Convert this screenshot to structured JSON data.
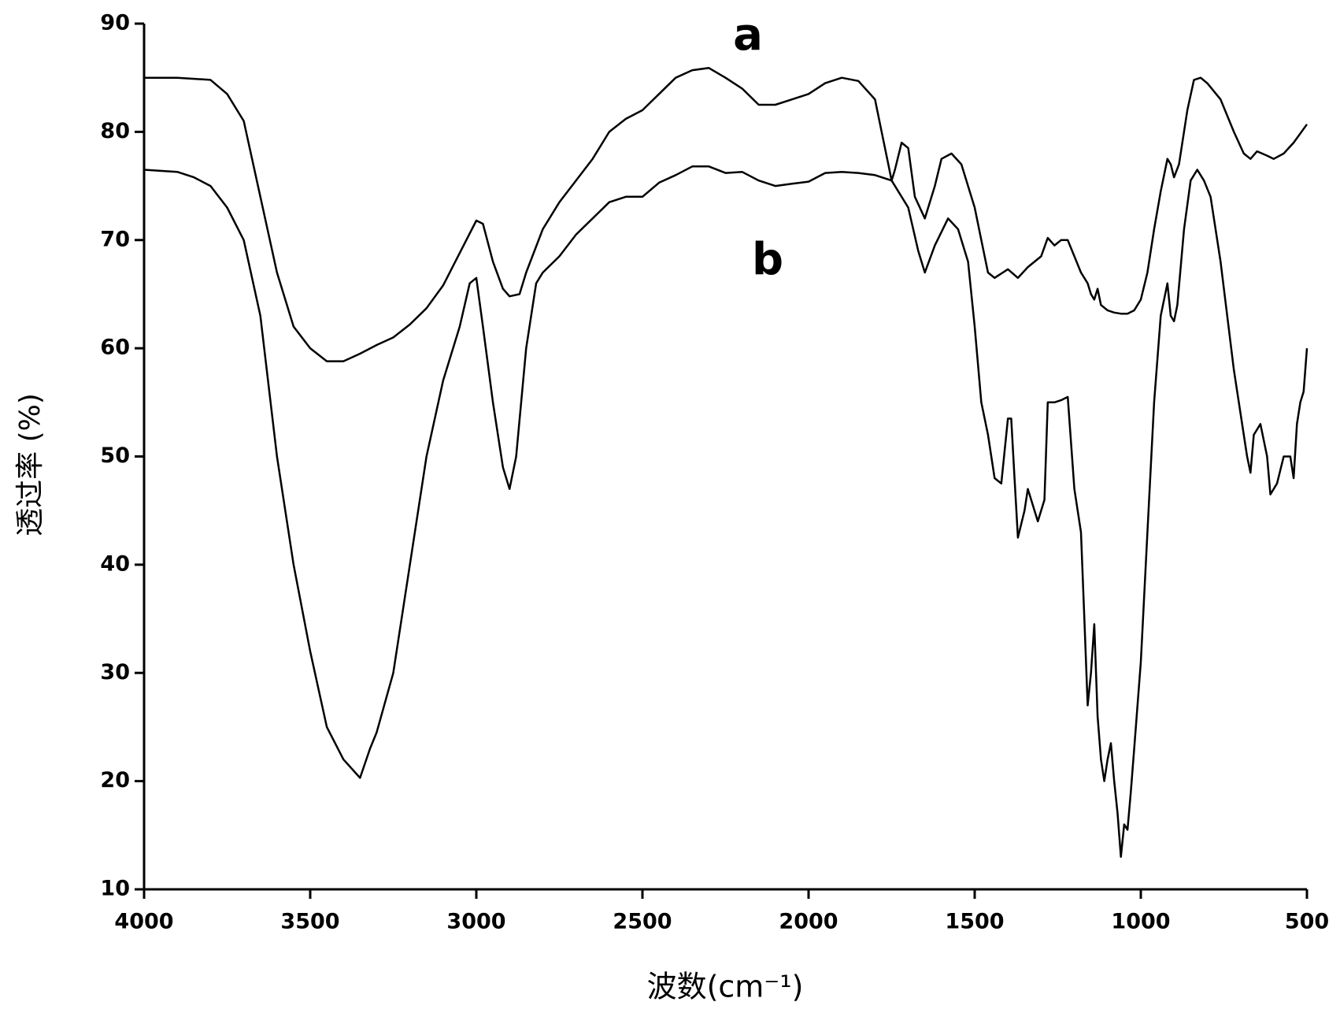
{
  "chart_data": {
    "type": "line",
    "x_label": "波数(cm⁻¹)",
    "y_label": "透过率 (%)",
    "xlim": [
      4000,
      500
    ],
    "ylim": [
      10,
      90
    ],
    "xticks": [
      4000,
      3500,
      3000,
      2500,
      2000,
      1500,
      1000,
      500
    ],
    "yticks": [
      10,
      20,
      30,
      40,
      50,
      60,
      70,
      80,
      90
    ],
    "grid": false,
    "series": [
      {
        "name": "a",
        "color": "#000000",
        "x": [
          4000,
          3900,
          3800,
          3750,
          3700,
          3650,
          3600,
          3550,
          3500,
          3450,
          3400,
          3350,
          3300,
          3250,
          3200,
          3150,
          3100,
          3050,
          3000,
          2980,
          2950,
          2920,
          2900,
          2870,
          2850,
          2800,
          2750,
          2700,
          2650,
          2600,
          2550,
          2500,
          2450,
          2400,
          2350,
          2300,
          2250,
          2200,
          2150,
          2100,
          2050,
          2000,
          1950,
          1900,
          1850,
          1800,
          1780,
          1760,
          1750,
          1740,
          1720,
          1700,
          1680,
          1650,
          1620,
          1600,
          1570,
          1540,
          1500,
          1480,
          1460,
          1440,
          1400,
          1370,
          1340,
          1300,
          1280,
          1260,
          1240,
          1220,
          1200,
          1180,
          1160,
          1150,
          1140,
          1130,
          1120,
          1100,
          1080,
          1060,
          1040,
          1020,
          1000,
          980,
          960,
          940,
          920,
          910,
          900,
          885,
          860,
          840,
          820,
          800,
          760,
          720,
          690,
          670,
          650,
          620,
          600,
          570,
          540,
          500
        ],
        "values": [
          85,
          85,
          84.8,
          83.5,
          81,
          74,
          67,
          62,
          60,
          58.8,
          58.8,
          59.5,
          60.3,
          61,
          62.2,
          63.7,
          65.8,
          68.8,
          71.8,
          71.5,
          68,
          65.5,
          64.8,
          65,
          67,
          71,
          73.5,
          75.5,
          77.5,
          80,
          81.2,
          82,
          83.5,
          85,
          85.7,
          85.9,
          85,
          84,
          82.5,
          82.5,
          83,
          83.5,
          84.5,
          85,
          84.7,
          83,
          80,
          77,
          75.5,
          76.5,
          79,
          78.5,
          74,
          72,
          75,
          77.5,
          78,
          77,
          73,
          70,
          67,
          66.5,
          67.3,
          66.5,
          67.5,
          68.5,
          70.2,
          69.5,
          70,
          70,
          68.5,
          67,
          66,
          65,
          64.5,
          65.5,
          64,
          63.5,
          63.3,
          63.2,
          63.2,
          63.5,
          64.5,
          67,
          71,
          74.5,
          77.5,
          77,
          75.8,
          77,
          82,
          84.8,
          85,
          84.5,
          83,
          80,
          78,
          77.5,
          78.2,
          77.8,
          77.5,
          78,
          79,
          80.7
        ]
      },
      {
        "name": "b",
        "color": "#000000",
        "x": [
          4000,
          3900,
          3850,
          3800,
          3750,
          3700,
          3650,
          3600,
          3550,
          3500,
          3450,
          3400,
          3350,
          3320,
          3300,
          3250,
          3200,
          3150,
          3100,
          3050,
          3020,
          3000,
          2980,
          2950,
          2920,
          2900,
          2880,
          2850,
          2820,
          2800,
          2750,
          2700,
          2650,
          2600,
          2550,
          2500,
          2450,
          2400,
          2350,
          2300,
          2250,
          2200,
          2150,
          2100,
          2050,
          2000,
          1950,
          1900,
          1850,
          1800,
          1750,
          1700,
          1670,
          1650,
          1620,
          1580,
          1550,
          1520,
          1500,
          1480,
          1460,
          1440,
          1420,
          1400,
          1390,
          1380,
          1370,
          1350,
          1340,
          1320,
          1310,
          1290,
          1280,
          1260,
          1240,
          1220,
          1200,
          1180,
          1170,
          1160,
          1150,
          1140,
          1130,
          1120,
          1110,
          1100,
          1090,
          1080,
          1070,
          1060,
          1050,
          1040,
          1030,
          1020,
          1000,
          980,
          960,
          940,
          920,
          910,
          900,
          890,
          870,
          850,
          830,
          810,
          790,
          760,
          720,
          700,
          680,
          670,
          660,
          640,
          620,
          610,
          590,
          570,
          550,
          540,
          530,
          520,
          510,
          500
        ],
        "values": [
          76.5,
          76.3,
          75.8,
          75,
          73,
          70,
          63,
          50,
          40,
          32,
          25,
          22,
          20.3,
          23,
          24.5,
          30,
          40,
          50,
          57,
          62,
          66,
          66.5,
          62,
          55,
          49,
          47,
          50,
          60,
          66,
          67,
          68.5,
          70.5,
          72,
          73.5,
          74,
          74,
          75.3,
          76,
          76.8,
          76.8,
          76.2,
          76.3,
          75.5,
          75,
          75.2,
          75.4,
          76.2,
          76.3,
          76.2,
          76,
          75.5,
          73,
          69,
          67,
          69.5,
          72,
          71,
          68,
          62,
          55,
          52,
          48,
          47.5,
          53.5,
          53.5,
          48,
          42.5,
          45,
          47,
          45,
          44,
          46,
          55,
          55,
          55.2,
          55.5,
          47,
          43,
          35,
          27,
          30,
          34.5,
          26,
          22,
          20,
          22,
          23.5,
          20,
          17,
          13,
          16,
          15.5,
          19,
          23,
          31,
          43,
          55,
          63,
          66,
          63,
          62.5,
          64,
          71,
          75.5,
          76.5,
          75.5,
          74,
          68,
          58,
          54,
          50,
          48.5,
          52,
          53,
          50,
          46.5,
          47.5,
          50,
          50,
          48,
          53,
          55,
          56,
          60
        ]
      }
    ]
  }
}
